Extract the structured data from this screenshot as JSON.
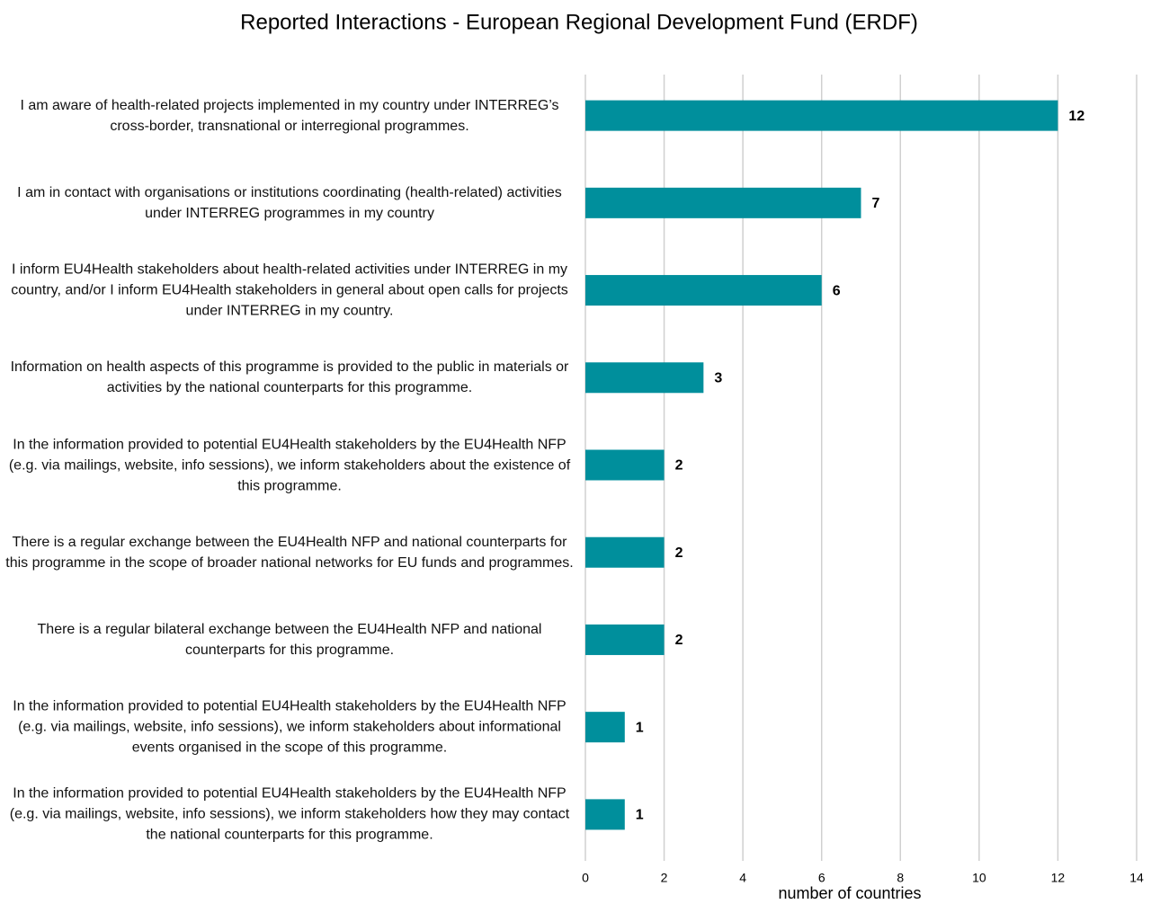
{
  "chart_data": {
    "type": "bar",
    "orientation": "horizontal",
    "title": "Reported Interactions - European Regional Development Fund (ERDF)",
    "x_label": "number of countries",
    "categories": [
      "I am aware of health-related projects implemented in my country under INTERREG’s cross-border, transnational or interregional programmes.",
      "I am in contact with organisations or institutions coordinating (health-related) activities under INTERREG programmes in my country",
      "I inform EU4Health stakeholders about health-related activities under INTERREG in my country, and/or I inform EU4Health stakeholders in general about open calls for projects under INTERREG in my country.",
      "Information on health aspects of this programme is provided to the public in materials or activities by the national counterparts for this programme.",
      "In the information provided to potential EU4Health stakeholders by the EU4Health NFP (e.g. via mailings, website, info sessions), we inform stakeholders about the existence of this programme.",
      "There is a regular exchange between the EU4Health NFP and national counterparts for this programme in the scope of broader national networks for EU funds and programmes.",
      "There is a regular bilateral exchange between the EU4Health NFP and national counterparts for this programme.",
      "In the information provided to potential EU4Health stakeholders by the EU4Health NFP (e.g. via mailings, website, info sessions), we inform stakeholders about informational events organised in the scope of this programme.",
      "In the information provided to potential EU4Health stakeholders by the EU4Health NFP (e.g. via mailings, website, info sessions), we inform stakeholders how they may contact the national counterparts for this programme."
    ],
    "values": [
      12,
      7,
      6,
      3,
      2,
      2,
      2,
      1,
      1
    ],
    "color": "#008f9c",
    "xlim": [
      0,
      14
    ],
    "xticks": [
      0,
      2,
      4,
      6,
      8,
      10,
      12,
      14
    ],
    "grid": true
  }
}
